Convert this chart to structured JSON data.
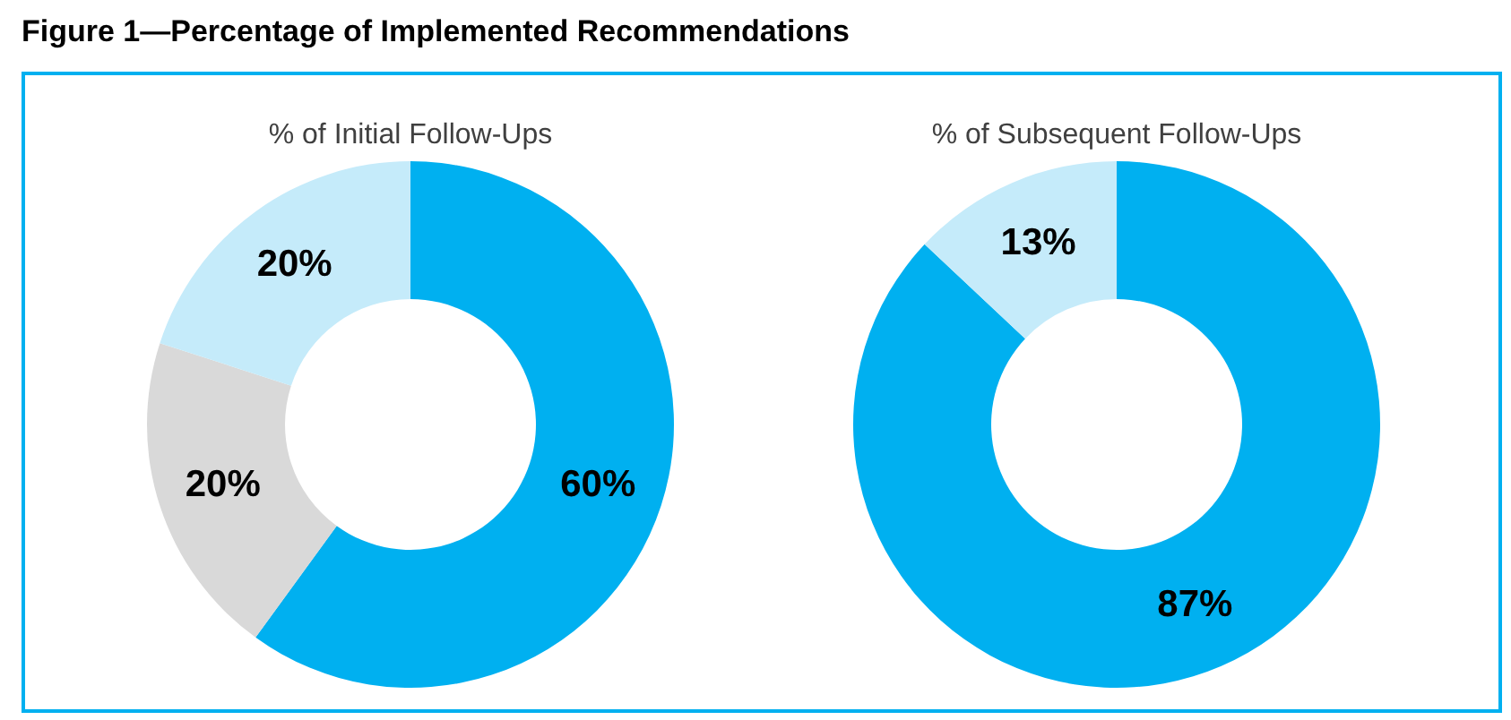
{
  "chart_data": [
    {
      "type": "donut",
      "title": "% of Initial Follow-Ups",
      "annotations": [
        "Figure 1—Percentage of Implemented Recommendations"
      ],
      "categories": [
        null,
        null,
        null
      ],
      "values": [
        60,
        20,
        20
      ],
      "colors": [
        "#00b0f0",
        "#d9d9d9",
        "#c5ebfa"
      ],
      "value_labels": [
        "60%",
        "20%",
        "20%"
      ]
    },
    {
      "type": "donut",
      "title": "% of Subsequent Follow-Ups",
      "categories": [
        null,
        null
      ],
      "values": [
        87,
        13
      ],
      "colors": [
        "#00b0f0",
        "#c5ebfa"
      ],
      "value_labels": [
        "87%",
        "13%"
      ]
    }
  ]
}
